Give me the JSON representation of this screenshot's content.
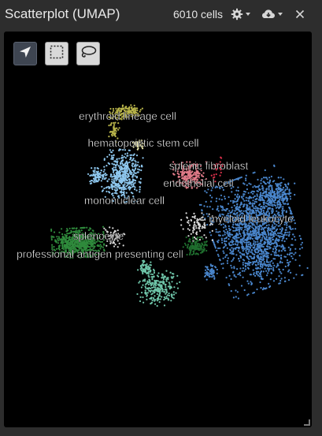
{
  "header": {
    "title": "Scatterplot (UMAP)",
    "cell_count": "6010 cells"
  },
  "toolbar": {
    "tools": [
      {
        "icon": "pointer-arrow-icon",
        "active": true
      },
      {
        "icon": "rectangle-select-icon",
        "active": false
      },
      {
        "icon": "lasso-select-icon",
        "active": false
      }
    ]
  },
  "clusters": [
    {
      "label": "erythroid lineage cell",
      "color": "#b8b44a"
    },
    {
      "label": "hematopoietic stem cell",
      "color": "#f2efb0"
    },
    {
      "label": "splenic fibroblast",
      "color": "#d8304a"
    },
    {
      "label": "endothelial cell",
      "color": "#e07a88"
    },
    {
      "label": "mononuclear cell",
      "color": "#8ec7ee"
    },
    {
      "label": "myeloid leukocyte",
      "color": "#4a86cc"
    },
    {
      "label": "splenocyte",
      "color": "#d7d7d7"
    },
    {
      "label": "professional antigen presenting cell",
      "color": "#2f8a3c"
    },
    {
      "label": "",
      "color": "#6ec4a8"
    },
    {
      "label": "",
      "color": "#1f6e2e"
    }
  ],
  "colors": {
    "plot_background": "#000000",
    "window_background": "#2d2d2d",
    "label_text": "#ffffff"
  }
}
